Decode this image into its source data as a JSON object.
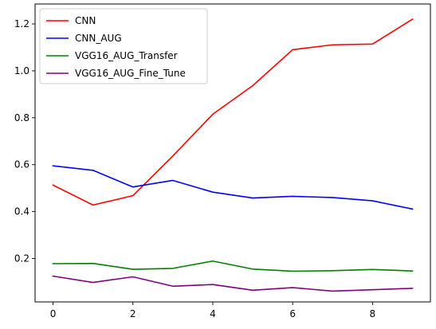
{
  "chart_data": {
    "type": "line",
    "title": "",
    "xlabel": "",
    "ylabel": "",
    "x": [
      0,
      1,
      2,
      3,
      4,
      5,
      6,
      7,
      8,
      9
    ],
    "xlim": [
      -0.45,
      9.45
    ],
    "ylim": [
      0.015,
      1.285
    ],
    "xticks": [
      0,
      2,
      4,
      6,
      8
    ],
    "yticks": [
      0.2,
      0.4,
      0.6,
      0.8,
      1.0,
      1.2
    ],
    "ytick_labels": [
      "0.2",
      "0.4",
      "0.6",
      "0.8",
      "1.0",
      "1.2"
    ],
    "grid": false,
    "legend_position": "top-left",
    "series": [
      {
        "name": "CNN",
        "color": "#ff0000",
        "values": [
          0.513,
          0.428,
          0.468,
          0.637,
          0.815,
          0.937,
          1.09,
          1.111,
          1.114,
          1.22
        ]
      },
      {
        "name": "CNN_AUG",
        "color": "#0000ff",
        "values": [
          0.595,
          0.576,
          0.505,
          0.533,
          0.483,
          0.458,
          0.465,
          0.46,
          0.446,
          0.411
        ]
      },
      {
        "name": "VGG16_AUG_Transfer",
        "color": "#008000",
        "values": [
          0.178,
          0.179,
          0.154,
          0.158,
          0.189,
          0.155,
          0.146,
          0.148,
          0.153,
          0.147
        ]
      },
      {
        "name": "VGG16_AUG_Fine_Tune",
        "color": "#800080",
        "values": [
          0.125,
          0.098,
          0.122,
          0.082,
          0.089,
          0.065,
          0.076,
          0.061,
          0.067,
          0.073
        ]
      }
    ]
  }
}
